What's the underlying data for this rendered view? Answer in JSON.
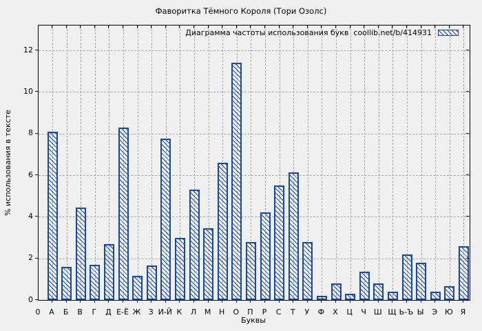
{
  "window": {
    "title": "Фаворитка Тёмного Короля (Тори Озолс)"
  },
  "chart_data": {
    "type": "bar",
    "title": "Фаворитка Тёмного Короля (Тори Озолс)",
    "legend": "Диаграмма частоты использования букв  coollib.net/b/414931",
    "legend_position": "top-right-inside",
    "xlabel": "Буквы",
    "ylabel": "% использования в тексте",
    "origin_label": "0",
    "categories": [
      "А",
      "Б",
      "В",
      "Г",
      "Д",
      "Е-Ё",
      "Ж",
      "З",
      "И-Й",
      "К",
      "Л",
      "М",
      "Н",
      "О",
      "П",
      "Р",
      "С",
      "Т",
      "У",
      "Ф",
      "Х",
      "Ц",
      "Ч",
      "Ш",
      "Щ",
      "Ь-Ъ",
      "Ы",
      "Э",
      "Ю",
      "Я"
    ],
    "values": [
      8.1,
      1.6,
      4.45,
      1.7,
      2.7,
      8.3,
      1.15,
      1.65,
      7.75,
      3.0,
      5.3,
      3.45,
      6.6,
      11.4,
      2.8,
      4.2,
      5.5,
      6.15,
      2.8,
      0.2,
      0.8,
      0.3,
      1.35,
      0.8,
      0.4,
      2.2,
      1.8,
      0.4,
      0.65,
      2.6
    ],
    "yticks": [
      0,
      2,
      4,
      6,
      8,
      10,
      12
    ],
    "ylim": [
      0,
      13.2
    ],
    "grid": true,
    "colors": {
      "bar": "#1648a8",
      "grid": "#a8a8a8",
      "background": "#f0f0f0",
      "border": "#000000",
      "text": "#000000"
    }
  }
}
